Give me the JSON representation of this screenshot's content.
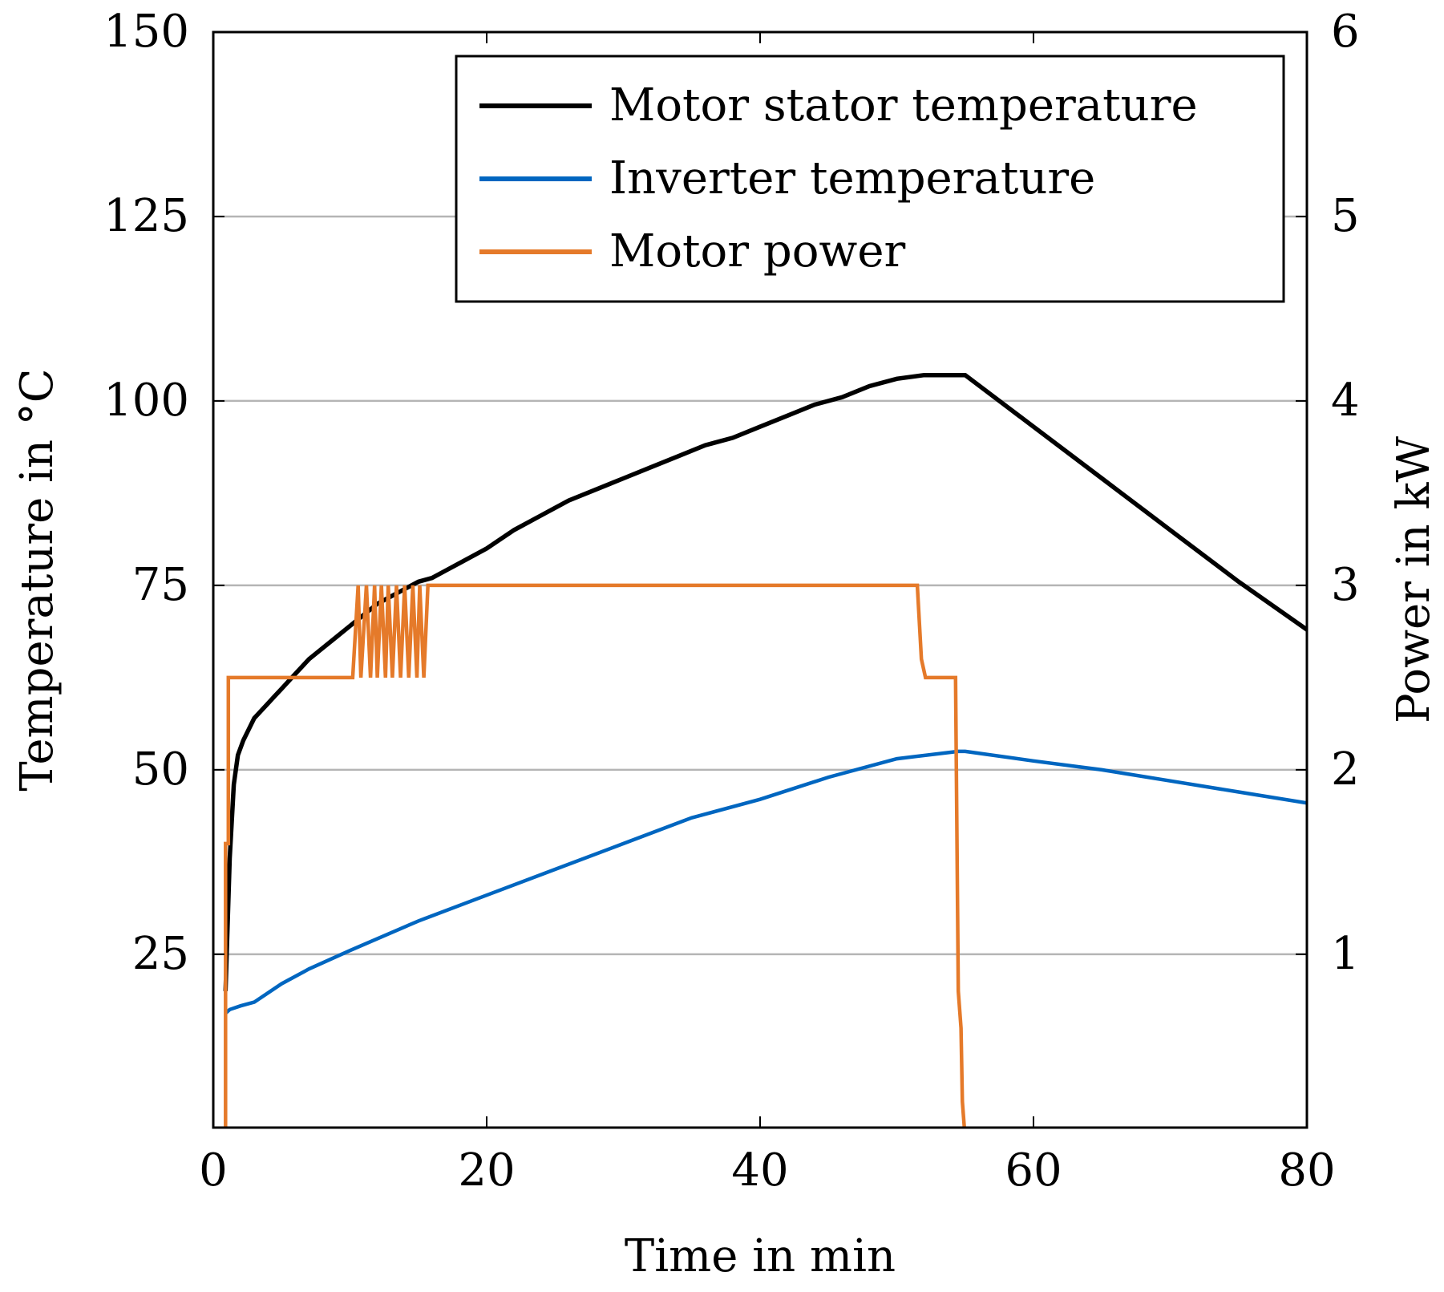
{
  "chart_data": {
    "type": "line",
    "title": "",
    "xlabel": "Time in min",
    "ylabel": "Temperature in °C",
    "y2label": "Power in kW",
    "xlim": [
      0,
      80
    ],
    "ylim": [
      1.5,
      150
    ],
    "y2lim": [
      0.06,
      6
    ],
    "xticks": [
      0,
      20,
      40,
      60,
      80
    ],
    "yticks": [
      25,
      50,
      75,
      100,
      125,
      150
    ],
    "y2ticks": [
      1,
      2,
      3,
      4,
      5,
      6
    ],
    "grid": "horizontal",
    "legend_position": "top-right",
    "series": [
      {
        "name": "Motor stator temperature",
        "axis": "left",
        "color": "#000000",
        "x": [
          0.9,
          1.2,
          1.5,
          1.8,
          2.2,
          2.6,
          3.0,
          3.5,
          4.0,
          4.5,
          5.0,
          5.5,
          6.0,
          7.0,
          8.0,
          9.0,
          10.0,
          11.0,
          12.0,
          13.0,
          14.0,
          15.0,
          16.0,
          17.0,
          18.0,
          20.0,
          22.0,
          24.0,
          26.0,
          28.0,
          30.0,
          32.0,
          34.0,
          36.0,
          38.0,
          40.0,
          42.0,
          44.0,
          46.0,
          48.0,
          50.0,
          52.0,
          54.0,
          55.0,
          60.0,
          65.0,
          70.0,
          75.0,
          80.0
        ],
        "values": [
          20,
          38,
          48,
          52,
          54,
          55.5,
          57,
          58,
          59,
          60,
          61,
          62,
          63,
          65,
          66.5,
          68,
          69.5,
          71,
          72.5,
          73.5,
          74.5,
          75.5,
          76,
          77,
          78,
          80,
          82.5,
          84.5,
          86.5,
          88,
          89.5,
          91,
          92.5,
          94,
          95,
          96.5,
          98,
          99.5,
          100.5,
          102,
          103,
          103.5,
          103.5,
          103.5,
          96.5,
          89.5,
          82.5,
          75.5,
          69
        ]
      },
      {
        "name": "Inverter temperature",
        "axis": "left",
        "color": "#0066c0",
        "x": [
          0.9,
          1.2,
          2.0,
          3.0,
          5.0,
          7.0,
          10.0,
          15.0,
          20.0,
          25.0,
          30.0,
          35.0,
          40.0,
          45.0,
          50.0,
          54.5,
          55.0,
          60.0,
          65.0,
          70.0,
          75.0,
          80.0
        ],
        "values": [
          17,
          17.5,
          18,
          18.5,
          21,
          23,
          25.5,
          29.5,
          33,
          36.5,
          40,
          43.5,
          46,
          49,
          51.5,
          52.5,
          52.5,
          51.2,
          50,
          48.5,
          47,
          45.5
        ]
      },
      {
        "name": "Motor power",
        "axis": "right",
        "color": "#e57a2a",
        "x": [
          0,
          0.9,
          0.9,
          1.1,
          1.1,
          10.2,
          10.6,
          10.8,
          11.2,
          11.5,
          11.8,
          12.0,
          12.3,
          12.6,
          12.8,
          13.1,
          13.4,
          13.7,
          14.0,
          14.3,
          14.6,
          14.9,
          15.1,
          15.4,
          15.7,
          16.0,
          51.5,
          51.8,
          52.1,
          52.4,
          52.7,
          52.9,
          54.3,
          54.5,
          54.7,
          54.8,
          55.0,
          80.0
        ],
        "values": [
          0,
          0,
          1.6,
          1.6,
          2.5,
          2.5,
          3.0,
          2.5,
          3.0,
          2.5,
          3.0,
          2.5,
          3.0,
          2.5,
          3.0,
          2.5,
          3.0,
          2.5,
          3.0,
          2.5,
          3.0,
          2.5,
          3.0,
          2.5,
          3.0,
          3.0,
          3.0,
          2.6,
          2.5,
          2.5,
          2.5,
          2.5,
          2.5,
          0.8,
          0.6,
          0.2,
          0,
          0
        ]
      }
    ]
  }
}
